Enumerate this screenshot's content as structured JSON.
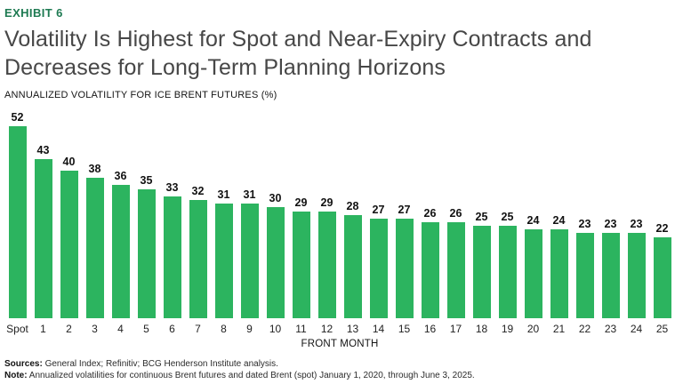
{
  "exhibit_label": "EXHIBIT 6",
  "title": {
    "lines": [
      "Volatility Is Highest for Spot and Near-Expiry Contracts and",
      "Decreases for Long-Term Planning Horizons"
    ]
  },
  "subtitle": "ANNUALIZED VOLATILITY FOR ICE BRENT FUTURES (%)",
  "chart_data": {
    "type": "bar",
    "categories": [
      "Spot",
      "1",
      "2",
      "3",
      "4",
      "5",
      "6",
      "7",
      "8",
      "9",
      "10",
      "11",
      "12",
      "13",
      "14",
      "15",
      "16",
      "17",
      "18",
      "19",
      "20",
      "21",
      "22",
      "23",
      "24",
      "25"
    ],
    "values": [
      52,
      43,
      40,
      38,
      36,
      35,
      33,
      32,
      31,
      31,
      30,
      29,
      29,
      28,
      27,
      27,
      26,
      26,
      25,
      25,
      24,
      24,
      23,
      23,
      23,
      22
    ],
    "title": "Volatility Is Highest for Spot and Near-Expiry Contracts and Decreases for Long-Term Planning Horizons",
    "subtitle": "ANNUALIZED VOLATILITY FOR ICE BRENT FUTURES (%)",
    "xlabel": "FRONT MONTH",
    "ylabel": "",
    "ylim": [
      0,
      52
    ],
    "grid": false,
    "legend": "none",
    "data_labels": true,
    "bar_color": "#2cb45f"
  },
  "colors": {
    "bar_green": "#2cb45f",
    "exhibit_green": "#1e7a52",
    "title_gray": "#474747",
    "text_dark": "#111111"
  },
  "footer": {
    "sources_label": "Sources:",
    "sources_text": " General Index; Refinitiv; BCG Henderson Institute analysis.",
    "note_label": "Note:",
    "note_text": " Annualized volatilities for continuous Brent futures and dated Brent (spot) January 1, 2020, through June 3, 2025."
  }
}
